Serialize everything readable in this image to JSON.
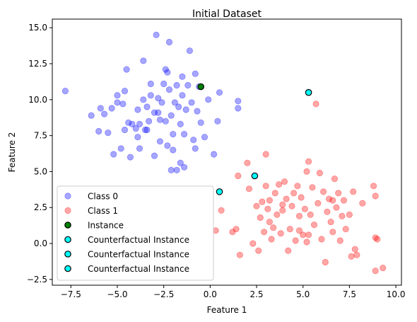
{
  "chart_data": {
    "type": "scatter",
    "title": "Initial Dataset",
    "xlabel": "Feature 1",
    "ylabel": "Feature 2",
    "xlim": [
      -8.5,
      10.3
    ],
    "ylim": [
      -2.9,
      15.6
    ],
    "xticks": [
      -7.5,
      -5.0,
      -2.5,
      0.0,
      2.5,
      5.0,
      7.5,
      10.0
    ],
    "xtick_labels": [
      "−7.5",
      "−5.0",
      "−2.5",
      "0.0",
      "2.5",
      "5.0",
      "7.5",
      "10.0"
    ],
    "yticks": [
      -2.5,
      0.0,
      2.5,
      5.0,
      7.5,
      10.0,
      12.5,
      15.0
    ],
    "ytick_labels": [
      "−2.5",
      "0.0",
      "2.5",
      "5.0",
      "7.5",
      "10.0",
      "12.5",
      "15.0"
    ],
    "grid": false,
    "legend_position": "lower-left",
    "series": [
      {
        "name": "Class 0",
        "color": "#0000ff",
        "alpha": 0.35,
        "points": [
          [
            -7.8,
            10.6
          ],
          [
            -6.4,
            8.9
          ],
          [
            -6.0,
            7.8
          ],
          [
            -5.9,
            9.4
          ],
          [
            -5.7,
            9.0
          ],
          [
            -5.5,
            7.7
          ],
          [
            -5.3,
            9.4
          ],
          [
            -5.2,
            6.2
          ],
          [
            -5.0,
            10.3
          ],
          [
            -5.0,
            9.8
          ],
          [
            -4.8,
            6.6
          ],
          [
            -4.7,
            9.7
          ],
          [
            -4.6,
            10.6
          ],
          [
            -4.6,
            7.9
          ],
          [
            -4.5,
            12.1
          ],
          [
            -4.4,
            8.4
          ],
          [
            -4.3,
            6.0
          ],
          [
            -4.2,
            8.3
          ],
          [
            -4.0,
            8.0
          ],
          [
            -3.9,
            9.3
          ],
          [
            -3.9,
            7.4
          ],
          [
            -3.8,
            8.3
          ],
          [
            -3.8,
            6.6
          ],
          [
            -3.6,
            12.7
          ],
          [
            -3.6,
            10.0
          ],
          [
            -3.5,
            7.9
          ],
          [
            -3.4,
            9.5
          ],
          [
            -3.3,
            8.5
          ],
          [
            -3.2,
            11.1
          ],
          [
            -3.2,
            10.3
          ],
          [
            -3.0,
            9.1
          ],
          [
            -3.0,
            6.1
          ],
          [
            -2.9,
            14.5
          ],
          [
            -2.8,
            10.1
          ],
          [
            -2.7,
            8.6
          ],
          [
            -2.7,
            7.1
          ],
          [
            -2.6,
            9.8
          ],
          [
            -2.5,
            11.1
          ],
          [
            -2.4,
            12.1
          ],
          [
            -2.4,
            8.5
          ],
          [
            -2.3,
            11.9
          ],
          [
            -2.3,
            6.8
          ],
          [
            -2.2,
            14.0
          ],
          [
            -2.2,
            10.7
          ],
          [
            -2.1,
            8.9
          ],
          [
            -2.0,
            7.6
          ],
          [
            -2.0,
            6.5
          ],
          [
            -1.9,
            9.8
          ],
          [
            -1.8,
            11.0
          ],
          [
            -1.8,
            5.1
          ],
          [
            -1.7,
            9.5
          ],
          [
            -1.6,
            8.3
          ],
          [
            -1.5,
            11.6
          ],
          [
            -1.5,
            10.3
          ],
          [
            -1.4,
            7.6
          ],
          [
            -1.4,
            5.3
          ],
          [
            -1.3,
            9.3
          ],
          [
            -1.2,
            11.0
          ],
          [
            -1.1,
            13.4
          ],
          [
            -1.0,
            9.8
          ],
          [
            -0.9,
            7.2
          ],
          [
            -0.8,
            6.6
          ],
          [
            -0.8,
            11.8
          ],
          [
            -0.7,
            9.2
          ],
          [
            -0.6,
            10.9
          ],
          [
            -0.5,
            8.4
          ],
          [
            -0.3,
            7.4
          ],
          [
            -0.1,
            10.0
          ],
          [
            0.2,
            6.2
          ],
          [
            0.4,
            8.5
          ],
          [
            0.5,
            10.5
          ],
          [
            1.5,
            9.9
          ],
          [
            1.5,
            9.4
          ],
          [
            -2.8,
            9.1
          ],
          [
            -2.1,
            5.1
          ],
          [
            -1.6,
            5.6
          ],
          [
            -3.4,
            7.9
          ]
        ]
      },
      {
        "name": "Class 1",
        "color": "#ff0000",
        "alpha": 0.35,
        "points": [
          [
            0.3,
            0.9
          ],
          [
            0.6,
            2.3
          ],
          [
            1.2,
            0.8
          ],
          [
            1.4,
            1.0
          ],
          [
            1.5,
            4.7
          ],
          [
            1.6,
            -0.8
          ],
          [
            2.0,
            5.6
          ],
          [
            2.1,
            3.8
          ],
          [
            2.3,
            0.0
          ],
          [
            2.5,
            2.6
          ],
          [
            2.6,
            -0.5
          ],
          [
            2.7,
            1.8
          ],
          [
            2.8,
            2.9
          ],
          [
            2.9,
            0.8
          ],
          [
            3.0,
            6.2
          ],
          [
            3.0,
            4.0
          ],
          [
            3.1,
            2.4
          ],
          [
            3.2,
            1.5
          ],
          [
            3.2,
            3.0
          ],
          [
            3.3,
            0.3
          ],
          [
            3.4,
            1.1
          ],
          [
            3.5,
            3.5
          ],
          [
            3.6,
            2.0
          ],
          [
            3.7,
            4.1
          ],
          [
            3.8,
            0.7
          ],
          [
            3.9,
            2.7
          ],
          [
            4.0,
            4.3
          ],
          [
            4.1,
            3.1
          ],
          [
            4.2,
            -0.5
          ],
          [
            4.3,
            1.0
          ],
          [
            4.4,
            2.6
          ],
          [
            4.5,
            3.5
          ],
          [
            4.6,
            0.2
          ],
          [
            4.7,
            4.0
          ],
          [
            4.8,
            1.9
          ],
          [
            4.9,
            3.2
          ],
          [
            5.0,
            0.6
          ],
          [
            5.1,
            2.4
          ],
          [
            5.2,
            5.0
          ],
          [
            5.2,
            0.1
          ],
          [
            5.3,
            5.7
          ],
          [
            5.4,
            2.0
          ],
          [
            5.5,
            3.9
          ],
          [
            5.6,
            1.3
          ],
          [
            5.7,
            9.7
          ],
          [
            5.8,
            2.8
          ],
          [
            5.9,
            4.9
          ],
          [
            6.0,
            0.3
          ],
          [
            6.1,
            3.6
          ],
          [
            6.2,
            -1.3
          ],
          [
            6.3,
            2.2
          ],
          [
            6.4,
            3.1
          ],
          [
            6.5,
            1.5
          ],
          [
            6.6,
            0.8
          ],
          [
            6.7,
            4.5
          ],
          [
            6.8,
            2.5
          ],
          [
            6.9,
            3.5
          ],
          [
            7.0,
            0.2
          ],
          [
            7.1,
            1.9
          ],
          [
            7.2,
            3.0
          ],
          [
            7.3,
            1.0
          ],
          [
            7.5,
            2.0
          ],
          [
            7.6,
            -0.9
          ],
          [
            7.7,
            3.6
          ],
          [
            7.8,
            -0.4
          ],
          [
            7.9,
            -0.8
          ],
          [
            8.2,
            2.8
          ],
          [
            8.8,
            4.0
          ],
          [
            8.9,
            3.3
          ],
          [
            8.9,
            0.4
          ],
          [
            9.0,
            0.3
          ],
          [
            9.3,
            -1.7
          ],
          [
            8.9,
            -1.9
          ],
          [
            4.8,
            0.9
          ],
          [
            5.3,
            0.6
          ],
          [
            3.9,
            2.3
          ],
          [
            6.6,
            3.0
          ]
        ]
      },
      {
        "name": "Instance",
        "color": "#008000",
        "alpha": 1.0,
        "edge": "#000000",
        "points": [
          [
            -0.5,
            10.9
          ]
        ]
      },
      {
        "name": "Counterfactual Instance",
        "color": "#00ffff",
        "alpha": 1.0,
        "edge": "#000000",
        "points": [
          [
            5.3,
            10.5
          ]
        ]
      },
      {
        "name": "Counterfactual Instance",
        "color": "#00ffff",
        "alpha": 1.0,
        "edge": "#000000",
        "points": [
          [
            2.4,
            4.7
          ]
        ]
      },
      {
        "name": "Counterfactual Instance",
        "color": "#00ffff",
        "alpha": 1.0,
        "edge": "#000000",
        "points": [
          [
            0.5,
            3.6
          ]
        ]
      }
    ]
  }
}
